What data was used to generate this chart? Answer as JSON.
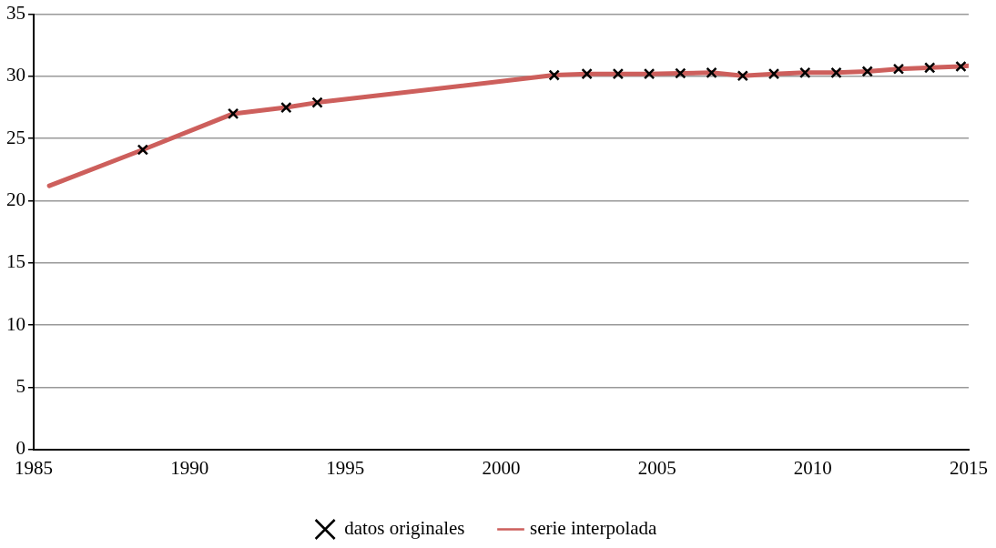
{
  "chart_data": {
    "type": "line",
    "series": [
      {
        "name": "datos originales",
        "type": "scatter",
        "color": "#000000",
        "marker": "cross",
        "x": [
          1988.5,
          1991.4,
          1993.1,
          1994.1,
          2001.7,
          2002.75,
          2003.75,
          2004.75,
          2005.75,
          2006.75,
          2007.75,
          2008.75,
          2009.75,
          2010.75,
          2011.75,
          2012.75,
          2013.75,
          2014.75
        ],
        "values": [
          24.1,
          27.0,
          27.5,
          27.9,
          30.1,
          30.2,
          30.2,
          30.2,
          30.25,
          30.3,
          30.05,
          30.2,
          30.3,
          30.3,
          30.4,
          30.6,
          30.7,
          30.8
        ]
      },
      {
        "name": "serie interpolada",
        "type": "line",
        "color": "#cd5f5c",
        "marker": "none",
        "line_style": "solid",
        "x": [
          1985.5,
          1988.5,
          1991.4,
          1993.1,
          1994.1,
          2001.7,
          2002.75,
          2003.75,
          2004.75,
          2005.75,
          2006.75,
          2007.75,
          2008.75,
          2009.75,
          2010.75,
          2011.75,
          2012.75,
          2013.75,
          2014.75,
          2015
        ],
        "values": [
          21.2,
          24.1,
          27.0,
          27.5,
          27.9,
          30.1,
          30.2,
          30.2,
          30.2,
          30.25,
          30.3,
          30.05,
          30.2,
          30.3,
          30.3,
          30.4,
          30.6,
          30.7,
          30.8,
          30.85
        ]
      }
    ],
    "xlim": [
      1985,
      2015
    ],
    "xticks": [
      1985,
      1990,
      1995,
      2000,
      2005,
      2010,
      2015
    ],
    "ylim": [
      0,
      35
    ],
    "yticks": [
      0,
      5,
      10,
      15,
      20,
      25,
      30,
      35
    ],
    "grid": "y",
    "legend": "bottom"
  }
}
